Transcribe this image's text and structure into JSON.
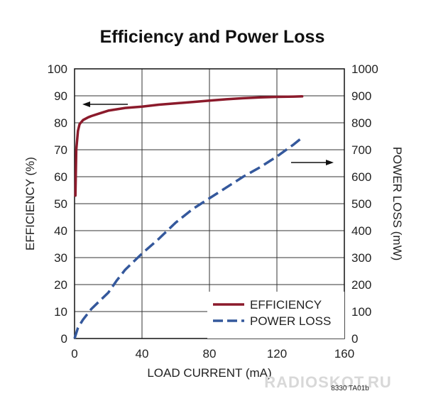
{
  "chart_data": {
    "type": "line",
    "title": "Efficiency and Power Loss",
    "xlabel": "LOAD CURRENT (mA)",
    "ylabel_left": "EFFICIENCY (%)",
    "ylabel_right": "POWER LOSS (mW)",
    "xlim": [
      0,
      160
    ],
    "ylim_left": [
      0,
      100
    ],
    "ylim_right": [
      0,
      1000
    ],
    "x_ticks": [
      "0",
      "40",
      "80",
      "120",
      "160"
    ],
    "y_ticks_left": [
      "0",
      "10",
      "20",
      "30",
      "40",
      "50",
      "60",
      "70",
      "80",
      "90",
      "100"
    ],
    "y_ticks_right": [
      "0",
      "100",
      "200",
      "300",
      "400",
      "500",
      "600",
      "700",
      "800",
      "900",
      "1000"
    ],
    "grid": true,
    "legend_position": "bottom-right",
    "series": [
      {
        "name": "EFFICIENCY",
        "axis": "left",
        "color": "#8b1a2b",
        "style": "solid",
        "x": [
          0.5,
          1,
          2,
          3,
          5,
          8,
          10,
          15,
          20,
          30,
          40,
          50,
          60,
          70,
          80,
          90,
          100,
          110,
          120,
          130,
          135
        ],
        "y": [
          53,
          70,
          77,
          79.5,
          81,
          82,
          82.5,
          83.5,
          84.5,
          85.5,
          86,
          86.7,
          87.2,
          87.7,
          88.2,
          88.7,
          89.1,
          89.4,
          89.6,
          89.7,
          89.8
        ]
      },
      {
        "name": "POWER LOSS",
        "axis": "right",
        "color": "#34589c",
        "style": "dashed",
        "x": [
          0,
          2,
          5,
          10,
          15,
          20,
          25,
          30,
          40,
          50,
          60,
          70,
          80,
          90,
          100,
          110,
          120,
          130,
          135
        ],
        "y": [
          0,
          40,
          70,
          110,
          140,
          170,
          215,
          255,
          315,
          370,
          430,
          480,
          520,
          560,
          600,
          635,
          675,
          720,
          745
        ]
      }
    ],
    "arrows": [
      {
        "points_to": "left",
        "label": ""
      },
      {
        "points_to": "right",
        "label": ""
      }
    ]
  },
  "footer": {
    "code": "8330 TA01b",
    "watermark": "RADIOSKOT.RU"
  }
}
